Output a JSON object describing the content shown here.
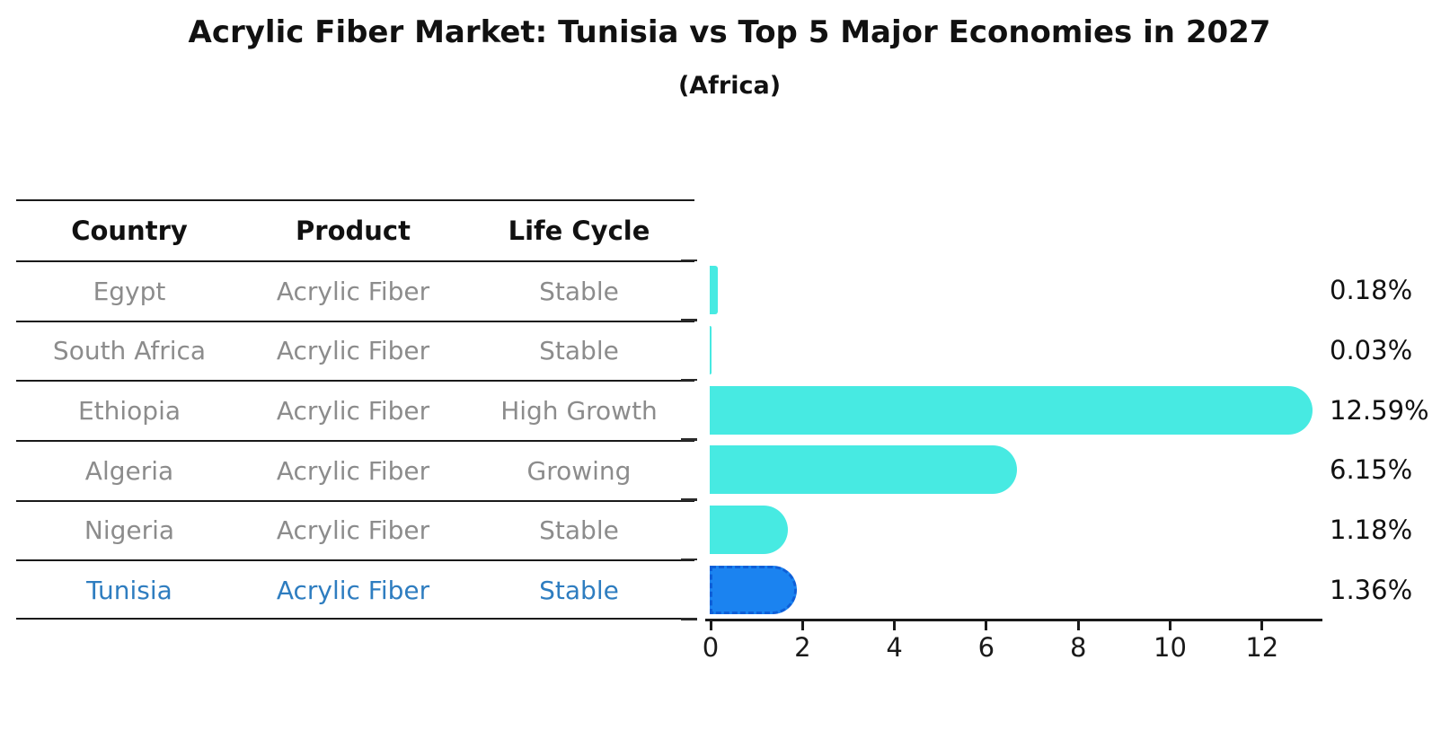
{
  "title": "Acrylic Fiber Market: Tunisia vs Top 5 Major Economies in 2027",
  "subtitle": "(Africa)",
  "table": {
    "headers": [
      "Country",
      "Product",
      "Life Cycle"
    ],
    "rows": [
      {
        "country": "Egypt",
        "product": "Acrylic Fiber",
        "life_cycle": "Stable",
        "highlight": false
      },
      {
        "country": "South Africa",
        "product": "Acrylic Fiber",
        "life_cycle": "Stable",
        "highlight": false
      },
      {
        "country": "Ethiopia",
        "product": "Acrylic Fiber",
        "life_cycle": "High Growth",
        "highlight": false
      },
      {
        "country": "Algeria",
        "product": "Acrylic Fiber",
        "life_cycle": "Growing",
        "highlight": false
      },
      {
        "country": "Nigeria",
        "product": "Acrylic Fiber",
        "life_cycle": "Stable",
        "highlight": false
      },
      {
        "country": "Tunisia",
        "product": "Acrylic Fiber",
        "life_cycle": "Stable",
        "highlight": true
      }
    ]
  },
  "chart_data": {
    "type": "bar",
    "orientation": "horizontal",
    "categories": [
      "Egypt",
      "South Africa",
      "Ethiopia",
      "Algeria",
      "Nigeria",
      "Tunisia"
    ],
    "values": [
      0.18,
      0.03,
      12.59,
      6.15,
      1.18,
      1.36
    ],
    "value_labels": [
      "0.18%",
      "0.03%",
      "12.59%",
      "6.15%",
      "1.18%",
      "1.36%"
    ],
    "highlight_index": 5,
    "x_ticks": [
      0,
      2,
      4,
      6,
      8,
      10,
      12
    ],
    "xlim": [
      0,
      13.3
    ],
    "grid": false,
    "legend": "none",
    "title": "Acrylic Fiber Market: Tunisia vs Top 5 Major Economies in 2027",
    "subtitle": "(Africa)",
    "xlabel": "",
    "ylabel": "",
    "colors": {
      "bar": "#47eae2",
      "highlight_bar": "#1b83f0",
      "highlight_bar_edge": "#0e5fd8",
      "highlight_text": "#2e7dc0",
      "row_text": "#8c8c8c",
      "header_text": "#111111",
      "axis": "#1a1a1a"
    }
  }
}
